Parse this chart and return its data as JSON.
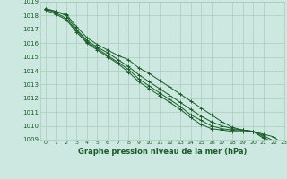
{
  "title": "Graphe pression niveau de la mer (hPa)",
  "bg_color": "#cce8e0",
  "grid_color": "#aaccbb",
  "line_color": "#1a5c2a",
  "text_color": "#1a5c2a",
  "xlim": [
    -0.5,
    23
  ],
  "ylim": [
    1009,
    1019
  ],
  "yticks": [
    1009,
    1010,
    1011,
    1012,
    1013,
    1014,
    1015,
    1016,
    1017,
    1018,
    1019
  ],
  "xticks": [
    0,
    1,
    2,
    3,
    4,
    5,
    6,
    7,
    8,
    9,
    10,
    11,
    12,
    13,
    14,
    15,
    16,
    17,
    18,
    19,
    20,
    21,
    22,
    23
  ],
  "series": [
    [
      1018.5,
      1018.3,
      1018.1,
      1017.2,
      1016.4,
      1015.9,
      1015.5,
      1015.1,
      1014.8,
      1014.2,
      1013.8,
      1013.3,
      1012.8,
      1012.3,
      1011.8,
      1011.3,
      1010.8,
      1010.3,
      1009.9,
      1009.7,
      1009.6,
      1009.4,
      1009.2,
      1008.6
    ],
    [
      1018.5,
      1018.3,
      1018.0,
      1017.0,
      1016.2,
      1015.7,
      1015.3,
      1014.8,
      1014.3,
      1013.7,
      1013.2,
      1012.7,
      1012.2,
      1011.7,
      1011.2,
      1010.7,
      1010.3,
      1010.0,
      1009.8,
      1009.7,
      1009.6,
      1009.3,
      1008.9,
      1008.4
    ],
    [
      1018.5,
      1018.2,
      1017.8,
      1016.9,
      1016.1,
      1015.6,
      1015.1,
      1014.6,
      1014.1,
      1013.4,
      1012.9,
      1012.4,
      1011.9,
      1011.4,
      1010.8,
      1010.4,
      1010.0,
      1009.8,
      1009.7,
      1009.7,
      1009.6,
      1009.2,
      1008.7,
      1008.3
    ],
    [
      1018.4,
      1018.1,
      1017.7,
      1016.8,
      1016.0,
      1015.5,
      1015.0,
      1014.5,
      1013.9,
      1013.2,
      1012.7,
      1012.2,
      1011.7,
      1011.2,
      1010.6,
      1010.1,
      1009.8,
      1009.7,
      1009.6,
      1009.6,
      1009.6,
      1009.1,
      1008.6,
      1008.2
    ]
  ]
}
